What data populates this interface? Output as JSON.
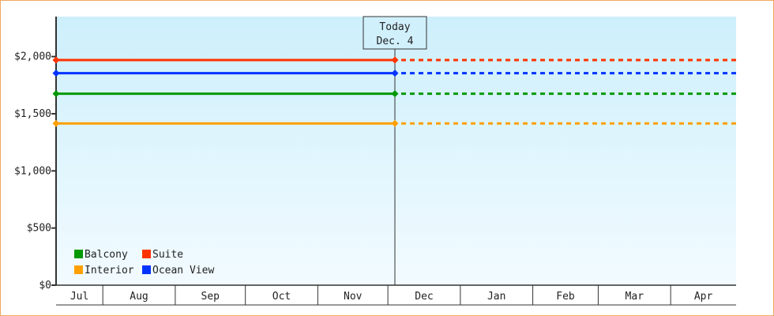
{
  "chart_data": {
    "type": "line",
    "title": "",
    "xlabel": "",
    "ylabel": "",
    "ylim": [
      0,
      2350
    ],
    "y_ticks": [
      {
        "value": 0,
        "label": "$0"
      },
      {
        "value": 500,
        "label": "$500"
      },
      {
        "value": 1000,
        "label": "$1,000"
      },
      {
        "value": 1500,
        "label": "$1,500"
      },
      {
        "value": 2000,
        "label": "$2,000"
      }
    ],
    "x_months": [
      "Jul",
      "Aug",
      "Sep",
      "Oct",
      "Nov",
      "Dec",
      "Jan",
      "Feb",
      "Mar",
      "Apr"
    ],
    "x_range": [
      "Jul 12",
      "Apr 28"
    ],
    "today_marker": {
      "line1": "Today",
      "line2": "Dec. 4",
      "date": "Dec 4"
    },
    "series": [
      {
        "name": "Suite",
        "color": "#ff3300",
        "points": [
          {
            "x": "Jul 12",
            "y": 1970
          },
          {
            "x": "Dec 4",
            "y": 1970
          }
        ],
        "projection": "dashed"
      },
      {
        "name": "Ocean View",
        "color": "#0033ff",
        "points": [
          {
            "x": "Jul 12",
            "y": 1855
          },
          {
            "x": "Dec 4",
            "y": 1855
          }
        ],
        "projection": "dashed"
      },
      {
        "name": "Balcony",
        "color": "#009900",
        "points": [
          {
            "x": "Jul 12",
            "y": 1675
          },
          {
            "x": "Dec 4",
            "y": 1675
          }
        ],
        "projection": "dashed"
      },
      {
        "name": "Interior",
        "color": "#ffa000",
        "points": [
          {
            "x": "Jul 12",
            "y": 1415
          },
          {
            "x": "Dec 4",
            "y": 1415
          }
        ],
        "projection": "dashed"
      }
    ],
    "legend": {
      "placement": "bottom-left",
      "order": [
        "Balcony",
        "Suite",
        "Interior",
        "Ocean View"
      ]
    },
    "grid": false,
    "background": "gradient light blue"
  }
}
